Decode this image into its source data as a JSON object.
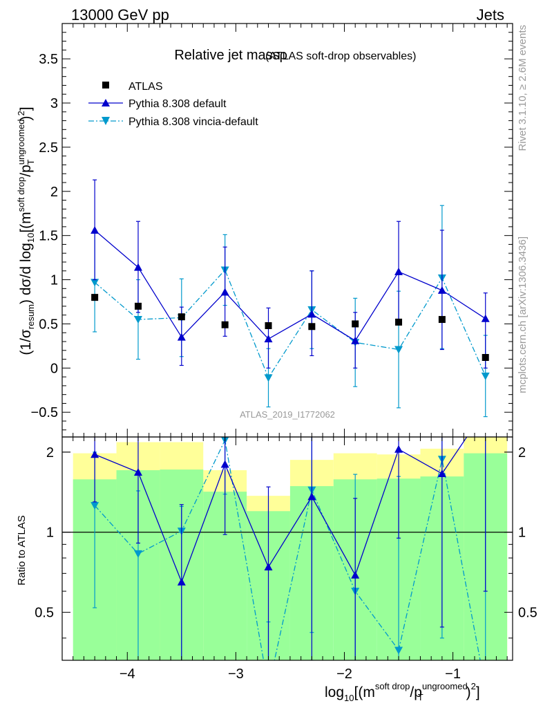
{
  "header": {
    "left": "13000 GeV pp",
    "right": "Jets"
  },
  "side_labels": {
    "rivet": "Rivet 3.1.10, ≥ 2.6M events",
    "mcplots": "mcplots.cern.ch [arXiv:1306.3436]"
  },
  "chart_data": {
    "type": "scatter",
    "title": "Relative jet massρ",
    "subtitle": "(ATLAS soft-drop observables)",
    "analysis_id": "ATLAS_2019_I1772062",
    "xlabel": "log10[(m^soft drop/pT^ungroomed)^2]",
    "ylabel": "(1/σresum) dσ/d log10[(m^soft drop/pT^ungroomed)^2]",
    "ratio_ylabel": "Ratio to ATLAS",
    "xlim": [
      -4.6,
      -0.45
    ],
    "ylim": [
      -0.78,
      3.9
    ],
    "ratio_ylim": [
      0.33,
      2.28
    ],
    "x_ticks": [
      -4,
      -3,
      -2,
      -1
    ],
    "x_tick_labels": [
      "−4",
      "−3",
      "−2",
      "−1"
    ],
    "y_ticks": [
      -0.5,
      0,
      0.5,
      1,
      1.5,
      2,
      2.5,
      3,
      3.5
    ],
    "y_tick_labels": [
      "−0.5",
      "0",
      "0.5",
      "1",
      "1.5",
      "2",
      "2.5",
      "3",
      "3.5"
    ],
    "ratio_ticks": [
      0.5,
      1,
      2
    ],
    "ratio_tick_labels": [
      "0.5",
      "1",
      "2"
    ],
    "x": [
      -4.3,
      -3.9,
      -3.5,
      -3.1,
      -2.7,
      -2.3,
      -1.9,
      -1.5,
      -1.1,
      -0.7
    ],
    "bin_edges": [
      -4.5,
      -4.1,
      -3.7,
      -3.3,
      -2.9,
      -2.5,
      -2.1,
      -1.7,
      -1.3,
      -0.9,
      -0.5
    ],
    "legend": {
      "position": "top-left",
      "entries": [
        "ATLAS",
        "Pythia 8.308 default",
        "Pythia 8.308 vincia-default"
      ]
    },
    "series": [
      {
        "name": "ATLAS",
        "color": "#000000",
        "marker": "square",
        "values": [
          0.8,
          0.7,
          0.58,
          0.49,
          0.48,
          0.47,
          0.5,
          0.52,
          0.55,
          0.12
        ]
      },
      {
        "name": "Pythia 8.308 default",
        "color": "#0000cc",
        "marker": "triangle-up",
        "line": "solid",
        "values": [
          1.56,
          1.14,
          0.35,
          0.86,
          0.33,
          0.61,
          0.31,
          1.09,
          0.88,
          0.56
        ],
        "err_low": [
          0.56,
          0.51,
          0.32,
          0.5,
          0.33,
          0.47,
          0.31,
          0.56,
          0.67,
          0.56
        ],
        "err_high": [
          0.57,
          0.52,
          0.34,
          0.51,
          0.35,
          0.49,
          0.32,
          0.57,
          0.68,
          0.29
        ]
      },
      {
        "name": "Pythia 8.308 vincia-default",
        "color": "#0099cc",
        "marker": "triangle-down",
        "line": "dashdot",
        "values": [
          0.97,
          0.55,
          0.57,
          1.11,
          -0.11,
          0.66,
          0.29,
          0.21,
          1.02,
          -0.09
        ],
        "err_low": [
          0.56,
          0.45,
          0.44,
          0.4,
          0.33,
          0.44,
          0.5,
          0.66,
          0.8,
          0.46
        ],
        "err_high": [
          0.56,
          0.45,
          0.44,
          0.4,
          0.33,
          0.44,
          0.5,
          0.66,
          0.82,
          0.46
        ]
      }
    ],
    "ratio_series": [
      {
        "name": "Pythia 8.308 default",
        "values": [
          1.96,
          1.68,
          0.65,
          1.8,
          0.74,
          1.36,
          0.69,
          2.05,
          1.66,
          4.6
        ],
        "err_low": [
          0.66,
          0.77,
          0.6,
          0.82,
          0.72,
          1.03,
          0.62,
          1.1,
          1.22,
          4.0
        ],
        "err_high": [
          0.68,
          0.72,
          0.62,
          0.85,
          0.74,
          1.05,
          0.65,
          1.12,
          1.25,
          2.0
        ]
      },
      {
        "name": "Pythia 8.308 vincia-default",
        "values": [
          1.26,
          0.83,
          1.01,
          2.22,
          -0.23,
          1.44,
          0.6,
          0.36,
          1.88,
          -0.7
        ],
        "err_low": [
          0.74,
          0.6,
          0.75,
          0.83,
          0.69,
          1.02,
          0.99,
          1.26,
          1.48,
          3.8
        ],
        "err_high": [
          0.74,
          0.6,
          0.24,
          0.3,
          0.69,
          0.9,
          1.05,
          1.26,
          1.58,
          3.8
        ]
      }
    ],
    "ratio_bands": {
      "yellow": [
        [
          0.52,
          1.98
        ],
        [
          0.33,
          2.18
        ],
        [
          0.33,
          2.18
        ],
        [
          0.72,
          1.71
        ],
        [
          0.88,
          1.37
        ],
        [
          0.63,
          1.87
        ],
        [
          0.51,
          1.98
        ],
        [
          0.55,
          1.96
        ],
        [
          0.5,
          2.06
        ],
        [
          0.33,
          2.28
        ]
      ],
      "green": [
        [
          0.33,
          1.58
        ],
        [
          0.33,
          1.71
        ],
        [
          0.33,
          1.72
        ],
        [
          0.33,
          1.42
        ],
        [
          0.33,
          1.2
        ],
        [
          0.33,
          1.49
        ],
        [
          0.33,
          1.58
        ],
        [
          0.33,
          1.59
        ],
        [
          0.33,
          1.62
        ],
        [
          0.33,
          1.98
        ]
      ]
    }
  }
}
